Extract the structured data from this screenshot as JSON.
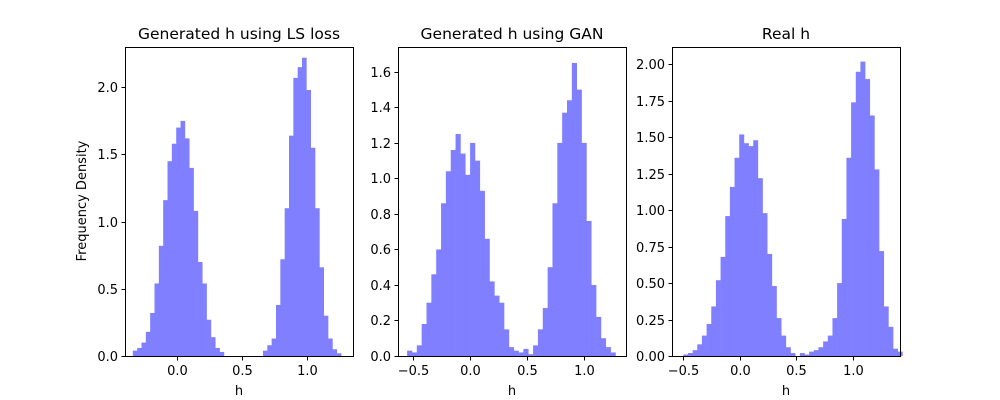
{
  "figure": {
    "ylabel": "Frequency Density"
  },
  "chart_data": [
    {
      "type": "bar",
      "title": "Generated h using LS loss",
      "xlabel": "h",
      "ylabel": "Frequency Density",
      "xlim": [
        -0.4,
        1.35
      ],
      "ylim": [
        0,
        2.3
      ],
      "xticks": [
        0.0,
        0.5,
        1.0
      ],
      "xtick_labels": [
        "0.0",
        "0.5",
        "1.0"
      ],
      "yticks": [
        0.0,
        0.5,
        1.0,
        1.5,
        2.0
      ],
      "ytick_labels": [
        "0.0",
        "0.5",
        "1.0",
        "1.5",
        "2.0"
      ],
      "bin_edges_start": -0.34,
      "bin_width": 0.0333,
      "values": [
        0.04,
        0.06,
        0.1,
        0.18,
        0.32,
        0.54,
        0.82,
        1.16,
        1.45,
        1.58,
        1.7,
        1.75,
        1.62,
        1.4,
        1.08,
        0.7,
        0.54,
        0.27,
        0.14,
        0.06,
        0.03,
        0,
        0,
        0,
        0,
        0,
        0,
        0,
        0,
        0,
        0.04,
        0.08,
        0.13,
        0.38,
        0.72,
        1.1,
        1.64,
        2.07,
        2.15,
        2.22,
        1.98,
        1.55,
        1.1,
        0.66,
        0.3,
        0.13,
        0.05,
        0.02
      ]
    },
    {
      "type": "bar",
      "title": "Generated h using GAN",
      "xlabel": "h",
      "ylabel": "",
      "xlim": [
        -0.63,
        1.37
      ],
      "ylim": [
        0,
        1.74
      ],
      "xticks": [
        -0.5,
        0.0,
        0.5,
        1.0
      ],
      "xtick_labels": [
        "−0.5",
        "0.0",
        "0.5",
        "1.0"
      ],
      "yticks": [
        0.0,
        0.2,
        0.4,
        0.6,
        0.8,
        1.0,
        1.2,
        1.4,
        1.6
      ],
      "ytick_labels": [
        "0.0",
        "0.2",
        "0.4",
        "0.6",
        "0.8",
        "1.0",
        "1.2",
        "1.4",
        "1.6"
      ],
      "bin_edges_start": -0.55,
      "bin_width": 0.0425,
      "values": [
        0.03,
        0.02,
        0.06,
        0.18,
        0.3,
        0.46,
        0.6,
        0.86,
        1.04,
        1.16,
        1.25,
        1.14,
        1.02,
        1.2,
        1.1,
        0.93,
        0.66,
        0.42,
        0.34,
        0.3,
        0.15,
        0.05,
        0.03,
        0.02,
        0.04,
        0.01,
        0.06,
        0.15,
        0.27,
        0.5,
        0.86,
        1.2,
        1.37,
        1.44,
        1.65,
        1.5,
        1.2,
        0.76,
        0.4,
        0.22,
        0.1,
        0.05,
        0.02
      ]
    },
    {
      "type": "bar",
      "title": "Real h",
      "xlabel": "h",
      "ylabel": "",
      "xlim": [
        -0.6,
        1.42
      ],
      "ylim": [
        0,
        2.12
      ],
      "xticks": [
        -0.5,
        0.0,
        0.5,
        1.0
      ],
      "xtick_labels": [
        "−0.5",
        "0.0",
        "0.5",
        "1.0"
      ],
      "yticks": [
        0.0,
        0.25,
        0.5,
        0.75,
        1.0,
        1.25,
        1.5,
        1.75,
        2.0
      ],
      "ytick_labels": [
        "0.00",
        "0.25",
        "0.50",
        "0.75",
        "1.00",
        "1.25",
        "1.50",
        "1.75",
        "2.00"
      ],
      "bin_edges_start": -0.5,
      "bin_width": 0.0413,
      "values": [
        0.01,
        0.02,
        0.04,
        0.08,
        0.14,
        0.22,
        0.34,
        0.52,
        0.68,
        0.96,
        1.16,
        1.36,
        1.52,
        1.46,
        1.44,
        1.48,
        1.22,
        0.98,
        0.7,
        0.48,
        0.26,
        0.14,
        0.06,
        0.02,
        0,
        0.02,
        0.01,
        0.03,
        0.04,
        0.06,
        0.1,
        0.14,
        0.26,
        0.5,
        0.94,
        1.36,
        1.74,
        1.95,
        2.02,
        1.9,
        1.65,
        1.28,
        0.72,
        0.34,
        0.2,
        0.05,
        0.03
      ]
    }
  ]
}
